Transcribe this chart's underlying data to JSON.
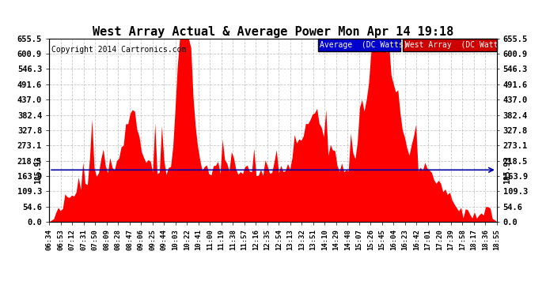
{
  "title": "West Array Actual & Average Power Mon Apr 14 19:18",
  "copyright": "Copyright 2014 Cartronics.com",
  "average_value": 185.93,
  "y_ticks": [
    0.0,
    54.6,
    109.3,
    163.9,
    218.5,
    273.1,
    327.8,
    382.4,
    437.0,
    491.6,
    546.3,
    600.9,
    655.5
  ],
  "ylim": [
    0,
    655.5
  ],
  "fill_color": "#FF0000",
  "average_line_color": "#0000AA",
  "bg_color": "#FFFFFF",
  "grid_color": "#BBBBBB",
  "legend_avg_bg": "#0000CC",
  "legend_west_bg": "#CC0000",
  "legend_avg_text": "Average  (DC Watts)",
  "legend_west_text": "West Array  (DC Watts)",
  "x_labels": [
    "06:34",
    "06:53",
    "07:12",
    "07:31",
    "07:50",
    "08:09",
    "08:28",
    "08:47",
    "09:06",
    "09:25",
    "09:44",
    "10:03",
    "10:22",
    "10:41",
    "11:00",
    "11:19",
    "11:38",
    "11:57",
    "12:16",
    "12:35",
    "12:54",
    "13:13",
    "13:32",
    "13:51",
    "14:10",
    "14:29",
    "14:48",
    "15:07",
    "15:26",
    "15:45",
    "16:04",
    "16:23",
    "16:42",
    "17:01",
    "17:20",
    "17:39",
    "17:58",
    "18:17",
    "18:36",
    "18:55"
  ]
}
